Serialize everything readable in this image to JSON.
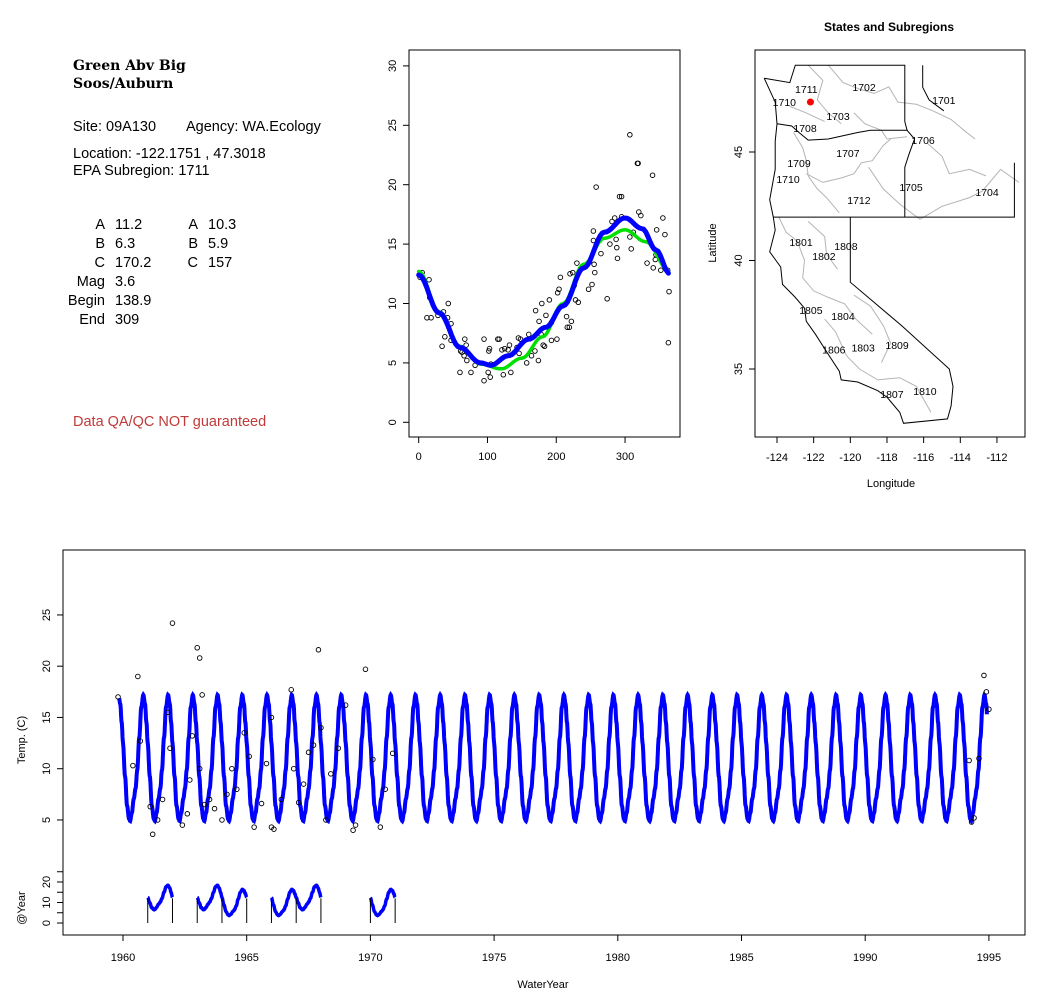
{
  "info_panel": {
    "site_name_line1": "Green Abv Big",
    "site_name_line2": "Soos/Auburn",
    "site": "Site: 09A130",
    "agency": "Agency: WA.Ecology",
    "location": "Location: -122.1751 , 47.3018",
    "subregion": "EPA Subregion: 1711",
    "params_left": [
      {
        "key": "A",
        "value": "11.2"
      },
      {
        "key": "B",
        "value": "6.3"
      },
      {
        "key": "C",
        "value": "170.2"
      },
      {
        "key": "Mag",
        "value": "3.6"
      },
      {
        "key": "Begin",
        "value": "138.9"
      },
      {
        "key": "End",
        "value": "309"
      }
    ],
    "params_right": [
      {
        "key": "A",
        "value": "10.3"
      },
      {
        "key": "B",
        "value": "5.9"
      },
      {
        "key": "C",
        "value": "157"
      }
    ],
    "disclaimer": "Data QA/QC NOT guaranteed"
  },
  "colors": {
    "fit_blue": "#0000ff",
    "fit_green": "#00e000",
    "site_marker": "#ff0000",
    "disclaimer": "#c03a3a",
    "boundary_grey": "#b4b4b4"
  },
  "chart_data": [
    {
      "type": "scatter",
      "title": "",
      "xlabel": "",
      "ylabel": "",
      "xlim": [
        0,
        365
      ],
      "ylim": [
        0,
        30
      ],
      "xticks": [
        "0",
        "100",
        "200",
        "300"
      ],
      "yticks": [
        "0",
        "5",
        "10",
        "15",
        "20",
        "25",
        "30"
      ],
      "points": [
        [
          2,
          12.2
        ],
        [
          5,
          12.6
        ],
        [
          12,
          8.8
        ],
        [
          15,
          12.0
        ],
        [
          18,
          8.8
        ],
        [
          16,
          10.5
        ],
        [
          28,
          9.0
        ],
        [
          34,
          6.4
        ],
        [
          36,
          9.3
        ],
        [
          38,
          7.2
        ],
        [
          42,
          8.8
        ],
        [
          43,
          10.0
        ],
        [
          47,
          6.9
        ],
        [
          47,
          8.3
        ],
        [
          60,
          4.2
        ],
        [
          61,
          6.0
        ],
        [
          63,
          5.9
        ],
        [
          66,
          5.6
        ],
        [
          67,
          7.0
        ],
        [
          69,
          6.5
        ],
        [
          70,
          5.2
        ],
        [
          76,
          4.2
        ],
        [
          82,
          4.8
        ],
        [
          95,
          3.5
        ],
        [
          95,
          7.0
        ],
        [
          101,
          4.2
        ],
        [
          102,
          6.0
        ],
        [
          103,
          6.2
        ],
        [
          104,
          3.8
        ],
        [
          105,
          4.9
        ],
        [
          115,
          7.0
        ],
        [
          117,
          7.0
        ],
        [
          121,
          6.1
        ],
        [
          123,
          4.0
        ],
        [
          125,
          6.2
        ],
        [
          130,
          6.1
        ],
        [
          132,
          6.5
        ],
        [
          134,
          4.2
        ],
        [
          143,
          6.3
        ],
        [
          145,
          7.1
        ],
        [
          146,
          5.8
        ],
        [
          148,
          7.0
        ],
        [
          157,
          5.0
        ],
        [
          160,
          7.4
        ],
        [
          164,
          5.6
        ],
        [
          169,
          6.0
        ],
        [
          170,
          9.4
        ],
        [
          174,
          5.2
        ],
        [
          175,
          8.5
        ],
        [
          178,
          7.4
        ],
        [
          179,
          10.0
        ],
        [
          181,
          6.5
        ],
        [
          183,
          6.4
        ],
        [
          185,
          9.0
        ],
        [
          190,
          10.3
        ],
        [
          193,
          6.9
        ],
        [
          193,
          8.4
        ],
        [
          201,
          7.0
        ],
        [
          202,
          10.9
        ],
        [
          204,
          11.2
        ],
        [
          206,
          12.2
        ],
        [
          215,
          8.9
        ],
        [
          216,
          8.0
        ],
        [
          219,
          8.0
        ],
        [
          220,
          12.5
        ],
        [
          222,
          8.5
        ],
        [
          224,
          12.6
        ],
        [
          226,
          11.5
        ],
        [
          228,
          10.3
        ],
        [
          230,
          13.4
        ],
        [
          232,
          10.1
        ],
        [
          247,
          11.2
        ],
        [
          248,
          13.5
        ],
        [
          252,
          11.6
        ],
        [
          254,
          15.3
        ],
        [
          254,
          16.1
        ],
        [
          255,
          13.3
        ],
        [
          256,
          12.6
        ],
        [
          258,
          19.8
        ],
        [
          265,
          14.2
        ],
        [
          274,
          10.4
        ],
        [
          278,
          15.0
        ],
        [
          281,
          16.9
        ],
        [
          285,
          17.2
        ],
        [
          287,
          15.4
        ],
        [
          288,
          14.7
        ],
        [
          289,
          13.8
        ],
        [
          292,
          19.0
        ],
        [
          295,
          19.0
        ],
        [
          295,
          17.3
        ],
        [
          307,
          24.2
        ],
        [
          307,
          15.6
        ],
        [
          309,
          14.6
        ],
        [
          312,
          16.0
        ],
        [
          318,
          21.8
        ],
        [
          319,
          21.8
        ],
        [
          320,
          17.7
        ],
        [
          323,
          17.4
        ],
        [
          332,
          13.4
        ],
        [
          340,
          20.8
        ],
        [
          341,
          13.0
        ],
        [
          344,
          13.7
        ],
        [
          345,
          14.1
        ],
        [
          346,
          16.2
        ],
        [
          352,
          12.8
        ],
        [
          355,
          17.2
        ],
        [
          358,
          15.8
        ],
        [
          362,
          12.8
        ],
        [
          364,
          11.0
        ],
        [
          363,
          6.7
        ]
      ],
      "series": [
        {
          "name": "fit_green",
          "color": "#00e000",
          "x": [
            0,
            30,
            60,
            90,
            120,
            150,
            180,
            210,
            240,
            270,
            300,
            330,
            365
          ],
          "y": [
            12.7,
            9.3,
            6.4,
            4.9,
            4.5,
            5.4,
            7.2,
            10.0,
            13.3,
            15.5,
            16.2,
            15.2,
            12.7
          ]
        },
        {
          "name": "fit_blue",
          "color": "#0000ff",
          "x": [
            0,
            30,
            60,
            90,
            105,
            130,
            160,
            185,
            210,
            240,
            270,
            300,
            325,
            345,
            365
          ],
          "y": [
            12.4,
            9.2,
            6.3,
            5.0,
            4.8,
            5.6,
            7.0,
            8.0,
            9.8,
            13.0,
            16.0,
            17.2,
            16.3,
            14.5,
            12.5
          ]
        }
      ]
    },
    {
      "type": "map",
      "title": "States and Subregions",
      "xlabel": "Longitude",
      "ylabel": "Latitude",
      "xlim": [
        -125.2,
        -110.5
      ],
      "ylim": [
        32.1,
        49.7
      ],
      "xticks": [
        "-124",
        "-122",
        "-120",
        "-118",
        "-116",
        "-114",
        "-112"
      ],
      "yticks": [
        "35",
        "40",
        "45"
      ],
      "site": {
        "lon": -122.1751,
        "lat": 47.3018
      },
      "labels": [
        {
          "text": "1711",
          "lon": -122.4,
          "lat": 47.9
        },
        {
          "text": "1702",
          "lon": -119.25,
          "lat": 48.0
        },
        {
          "text": "1701",
          "lon": -114.9,
          "lat": 47.4
        },
        {
          "text": "1710",
          "lon": -123.6,
          "lat": 47.3
        },
        {
          "text": "1703",
          "lon": -120.67,
          "lat": 46.66
        },
        {
          "text": "1708",
          "lon": -122.47,
          "lat": 46.1
        },
        {
          "text": "1706",
          "lon": -116.03,
          "lat": 45.55
        },
        {
          "text": "1707",
          "lon": -120.13,
          "lat": 44.95
        },
        {
          "text": "1709",
          "lon": -122.8,
          "lat": 44.5
        },
        {
          "text": "1710",
          "lon": -123.4,
          "lat": 43.76
        },
        {
          "text": "1705",
          "lon": -116.69,
          "lat": 43.39
        },
        {
          "text": "1704",
          "lon": -112.54,
          "lat": 43.16
        },
        {
          "text": "1712",
          "lon": -119.53,
          "lat": 42.79
        },
        {
          "text": "1801",
          "lon": -122.69,
          "lat": 40.85
        },
        {
          "text": "1808",
          "lon": -120.24,
          "lat": 40.67
        },
        {
          "text": "1802",
          "lon": -121.44,
          "lat": 40.2
        },
        {
          "text": "1805",
          "lon": -122.15,
          "lat": 37.72
        },
        {
          "text": "1804",
          "lon": -120.4,
          "lat": 37.44
        },
        {
          "text": "1806",
          "lon": -120.9,
          "lat": 35.9
        },
        {
          "text": "1803",
          "lon": -119.3,
          "lat": 36.0
        },
        {
          "text": "1809",
          "lon": -117.45,
          "lat": 36.1
        },
        {
          "text": "1807",
          "lon": -117.73,
          "lat": 33.85
        },
        {
          "text": "1810",
          "lon": -115.93,
          "lat": 33.99
        }
      ]
    },
    {
      "type": "line",
      "title": "",
      "xlabel": "WaterYear",
      "ylabel": "Temp. (C)",
      "ylabel2": "@Year",
      "xlim": [
        1957.7,
        1996.5
      ],
      "ylim": [
        -10,
        30
      ],
      "xticks": [
        "1960",
        "1965",
        "1970",
        "1975",
        "1980",
        "1985",
        "1990",
        "1995"
      ],
      "yticks": [
        "5",
        "10",
        "15",
        "20",
        "25"
      ],
      "yticks2": [
        "0",
        "10",
        "20"
      ],
      "fit": {
        "start": 1959.85,
        "end": 1994.92,
        "min": 4.9,
        "max": 17.2,
        "peak_day_of_wateryear": 298
      },
      "points": [
        [
          1959.8,
          17.0
        ],
        [
          1960.6,
          19.0
        ],
        [
          1960.4,
          10.3
        ],
        [
          1960.7,
          12.7
        ],
        [
          1961.2,
          3.6
        ],
        [
          1961.1,
          6.3
        ],
        [
          1961.4,
          5.0
        ],
        [
          1961.6,
          7.0
        ],
        [
          1961.8,
          15.5
        ],
        [
          1962.0,
          24.2
        ],
        [
          1961.9,
          12.0
        ],
        [
          1962.4,
          4.5
        ],
        [
          1962.6,
          5.6
        ],
        [
          1962.7,
          8.9
        ],
        [
          1962.8,
          13.2
        ],
        [
          1963.0,
          21.8
        ],
        [
          1963.1,
          20.8
        ],
        [
          1963.2,
          17.2
        ],
        [
          1963.1,
          10.0
        ],
        [
          1963.3,
          6.5
        ],
        [
          1963.5,
          7.0
        ],
        [
          1963.7,
          6.1
        ],
        [
          1964.0,
          5.0
        ],
        [
          1964.2,
          7.5
        ],
        [
          1964.4,
          10.0
        ],
        [
          1964.6,
          8.0
        ],
        [
          1964.9,
          13.5
        ],
        [
          1965.1,
          11.2
        ],
        [
          1965.3,
          4.3
        ],
        [
          1965.6,
          6.6
        ],
        [
          1965.8,
          10.5
        ],
        [
          1966.0,
          15.0
        ],
        [
          1966.0,
          4.3
        ],
        [
          1966.1,
          4.1
        ],
        [
          1966.4,
          7.0
        ],
        [
          1966.8,
          17.7
        ],
        [
          1966.9,
          10.0
        ],
        [
          1967.1,
          6.7
        ],
        [
          1967.3,
          8.5
        ],
        [
          1967.5,
          11.6
        ],
        [
          1967.7,
          12.3
        ],
        [
          1967.9,
          21.6
        ],
        [
          1968.0,
          14.0
        ],
        [
          1968.2,
          5.0
        ],
        [
          1968.4,
          9.5
        ],
        [
          1968.7,
          12.0
        ],
        [
          1969.0,
          16.2
        ],
        [
          1969.3,
          4.0
        ],
        [
          1969.4,
          4.5
        ],
        [
          1969.8,
          19.7
        ],
        [
          1970.1,
          10.9
        ],
        [
          1970.4,
          4.3
        ],
        [
          1970.6,
          8.0
        ],
        [
          1970.9,
          11.5
        ],
        [
          1994.2,
          10.8
        ],
        [
          1994.3,
          4.8
        ],
        [
          1994.4,
          5.2
        ],
        [
          1994.6,
          11.0
        ],
        [
          1994.8,
          19.1
        ],
        [
          1994.9,
          17.5
        ],
        [
          1995.0,
          15.8
        ]
      ],
      "year_segments": [
        {
          "start": 1961,
          "end": 1962
        },
        {
          "start": 1963,
          "end": 1965
        },
        {
          "start": 1966,
          "end": 1968
        },
        {
          "start": 1970,
          "end": 1971
        }
      ],
      "year_markers": [
        1961,
        1962,
        1963,
        1964,
        1965,
        1966,
        1967,
        1968,
        1970,
        1971
      ]
    }
  ]
}
